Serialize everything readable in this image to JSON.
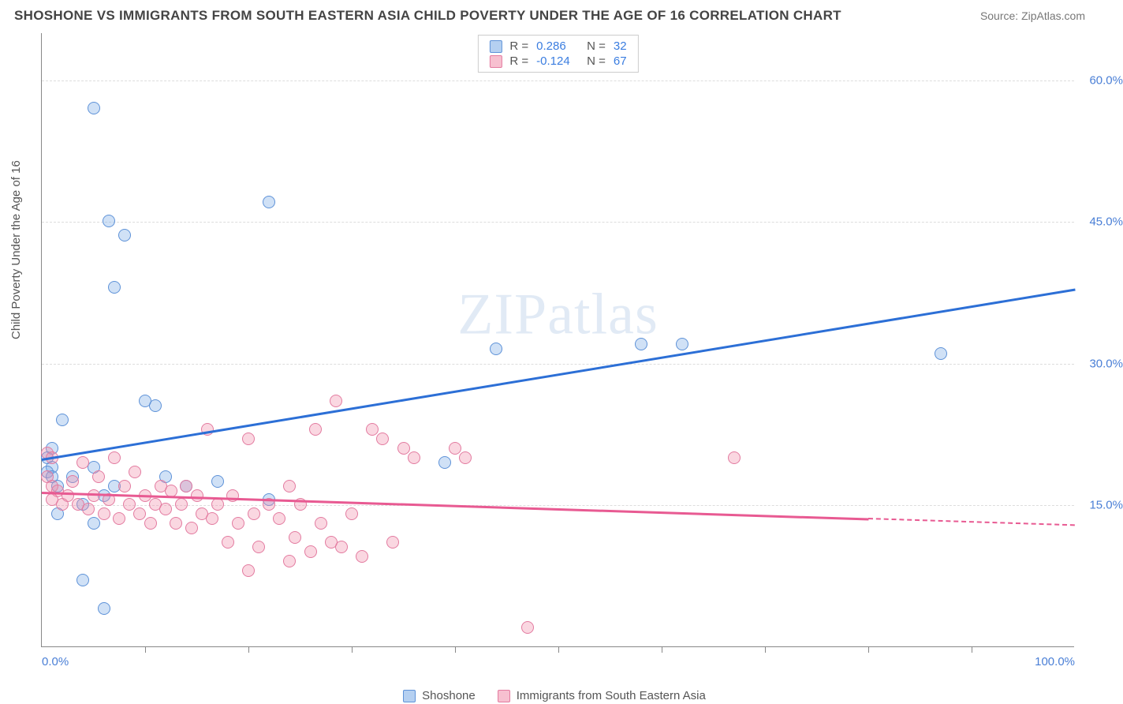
{
  "title": "SHOSHONE VS IMMIGRANTS FROM SOUTH EASTERN ASIA CHILD POVERTY UNDER THE AGE OF 16 CORRELATION CHART",
  "source_label": "Source: ZipAtlas.com",
  "ylabel": "Child Poverty Under the Age of 16",
  "watermark_a": "ZIP",
  "watermark_b": "atlas",
  "chart": {
    "type": "scatter",
    "xlim": [
      0,
      100
    ],
    "ylim": [
      0,
      65
    ],
    "background_color": "#ffffff",
    "grid_color": "#dddddd",
    "axis_color": "#888888",
    "marker_radius": 8,
    "yticks": [
      {
        "v": 15,
        "label": "15.0%"
      },
      {
        "v": 30,
        "label": "30.0%"
      },
      {
        "v": 45,
        "label": "45.0%"
      },
      {
        "v": 60,
        "label": "60.0%"
      }
    ],
    "xticks_minor": [
      10,
      20,
      30,
      40,
      50,
      60,
      70,
      80,
      90
    ],
    "xtick_labels": [
      {
        "v": 0,
        "label": "0.0%"
      },
      {
        "v": 100,
        "label": "100.0%"
      }
    ],
    "series": [
      {
        "key": "shoshone",
        "label": "Shoshone",
        "fill_color": "rgba(120,170,230,0.35)",
        "stroke_color": "#5e92d8",
        "trend_color": "#2c6fd6",
        "R": "0.286",
        "N": "32",
        "trend": {
          "x0": 0,
          "y0": 20,
          "x1": 100,
          "y1": 38,
          "solid_until": 100
        },
        "points": [
          [
            5,
            57
          ],
          [
            6.5,
            45
          ],
          [
            8,
            43.5
          ],
          [
            7,
            38
          ],
          [
            22,
            47
          ],
          [
            0.5,
            20
          ],
          [
            1,
            19
          ],
          [
            0.5,
            18.5
          ],
          [
            1,
            18
          ],
          [
            1.5,
            17
          ],
          [
            1,
            21
          ],
          [
            2,
            24
          ],
          [
            3,
            18
          ],
          [
            4,
            15
          ],
          [
            5,
            13
          ],
          [
            5,
            19
          ],
          [
            6,
            16
          ],
          [
            7,
            17
          ],
          [
            10,
            26
          ],
          [
            11,
            25.5
          ],
          [
            12,
            18
          ],
          [
            14,
            17
          ],
          [
            17,
            17.5
          ],
          [
            22,
            15.5
          ],
          [
            39,
            19.5
          ],
          [
            44,
            31.5
          ],
          [
            58,
            32
          ],
          [
            62,
            32
          ],
          [
            87,
            31
          ],
          [
            4,
            7
          ],
          [
            6,
            4
          ],
          [
            1.5,
            14
          ]
        ]
      },
      {
        "key": "sea",
        "label": "Immigrants from South Eastern Asia",
        "fill_color": "rgba(240,140,170,0.35)",
        "stroke_color": "#e37ba0",
        "trend_color": "#e85a92",
        "R": "-0.124",
        "N": "67",
        "trend": {
          "x0": 0,
          "y0": 16.5,
          "x1": 100,
          "y1": 13,
          "solid_until": 80
        },
        "points": [
          [
            0.5,
            20.5
          ],
          [
            1,
            20
          ],
          [
            0.5,
            18
          ],
          [
            1,
            17
          ],
          [
            1.5,
            16.5
          ],
          [
            1,
            15.5
          ],
          [
            2,
            15
          ],
          [
            2.5,
            16
          ],
          [
            3,
            17.5
          ],
          [
            3.5,
            15
          ],
          [
            4,
            19.5
          ],
          [
            4.5,
            14.5
          ],
          [
            5,
            16
          ],
          [
            5.5,
            18
          ],
          [
            6,
            14
          ],
          [
            6.5,
            15.5
          ],
          [
            7,
            20
          ],
          [
            7.5,
            13.5
          ],
          [
            8,
            17
          ],
          [
            8.5,
            15
          ],
          [
            9,
            18.5
          ],
          [
            9.5,
            14
          ],
          [
            10,
            16
          ],
          [
            10.5,
            13
          ],
          [
            11,
            15
          ],
          [
            11.5,
            17
          ],
          [
            12,
            14.5
          ],
          [
            12.5,
            16.5
          ],
          [
            13,
            13
          ],
          [
            13.5,
            15
          ],
          [
            14,
            17
          ],
          [
            14.5,
            12.5
          ],
          [
            15,
            16
          ],
          [
            15.5,
            14
          ],
          [
            16,
            23
          ],
          [
            16.5,
            13.5
          ],
          [
            17,
            15
          ],
          [
            18,
            11
          ],
          [
            18.5,
            16
          ],
          [
            19,
            13
          ],
          [
            20,
            22
          ],
          [
            20.5,
            14
          ],
          [
            21,
            10.5
          ],
          [
            22,
            15
          ],
          [
            23,
            13.5
          ],
          [
            24,
            17
          ],
          [
            24.5,
            11.5
          ],
          [
            25,
            15
          ],
          [
            26,
            10
          ],
          [
            26.5,
            23
          ],
          [
            27,
            13
          ],
          [
            28,
            11
          ],
          [
            28.5,
            26
          ],
          [
            29,
            10.5
          ],
          [
            30,
            14
          ],
          [
            31,
            9.5
          ],
          [
            32,
            23
          ],
          [
            33,
            22
          ],
          [
            34,
            11
          ],
          [
            35,
            21
          ],
          [
            36,
            20
          ],
          [
            40,
            21
          ],
          [
            41,
            20
          ],
          [
            47,
            2
          ],
          [
            67,
            20
          ],
          [
            20,
            8
          ],
          [
            24,
            9
          ]
        ]
      }
    ]
  },
  "legend_top": {
    "r_prefix": "R =",
    "n_prefix": "N ="
  }
}
